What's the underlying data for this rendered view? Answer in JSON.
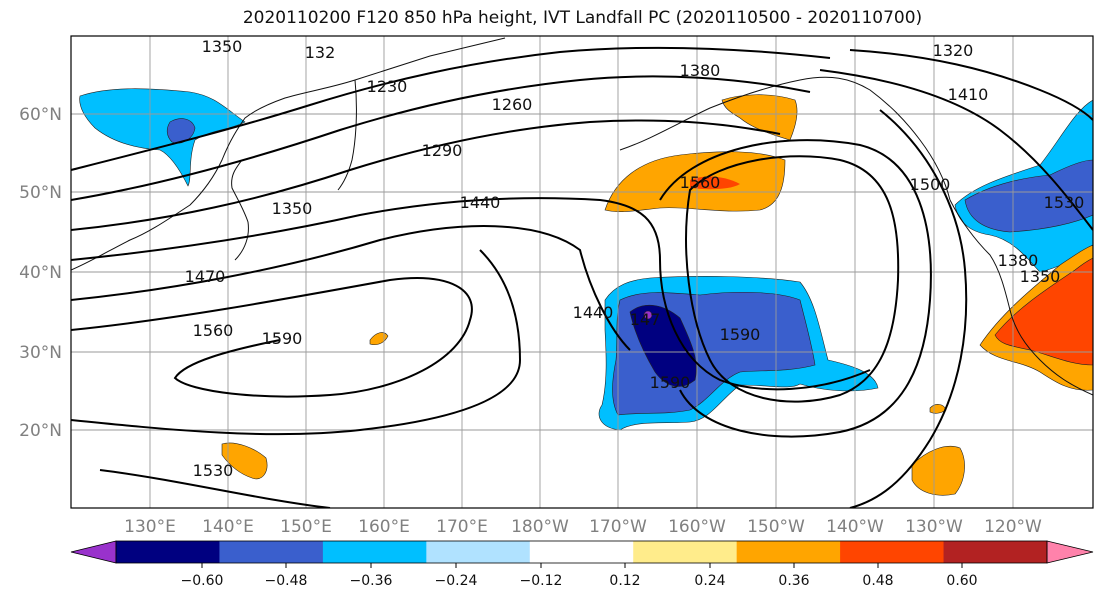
{
  "title": "2020110200 F120 850 hPa height, IVT Landfall PC (2020110500 - 2020110700)",
  "lon_labels": [
    "130°E",
    "140°E",
    "150°E",
    "160°E",
    "170°E",
    "180°W",
    "170°W",
    "160°W",
    "150°W",
    "140°W",
    "130°W",
    "120°W"
  ],
  "lat_labels": [
    "60°N",
    "50°N",
    "40°N",
    "30°N",
    "20°N"
  ],
  "contour_labels": [
    "1350",
    "132",
    "1230",
    "1260",
    "1290",
    "1380",
    "1320",
    "1410",
    "1350",
    "1440",
    "1560",
    "1500",
    "1470",
    "1560",
    "1590",
    "1440",
    "147",
    "1590",
    "1380",
    "1350",
    "1590",
    "1530",
    "1530"
  ],
  "colorbar": {
    "colors": [
      "#9932cc",
      "#000080",
      "#3a5fcd",
      "#00bfff",
      "#b0e2ff",
      "#ffffff",
      "#ffec8b",
      "#ffa500",
      "#ff4500",
      "#b22222",
      "#ff82ab"
    ],
    "tick_labels": [
      "−0.60",
      "−0.48",
      "−0.36",
      "−0.24",
      "−0.12",
      "0.12",
      "0.24",
      "0.36",
      "0.48",
      "0.60"
    ]
  }
}
